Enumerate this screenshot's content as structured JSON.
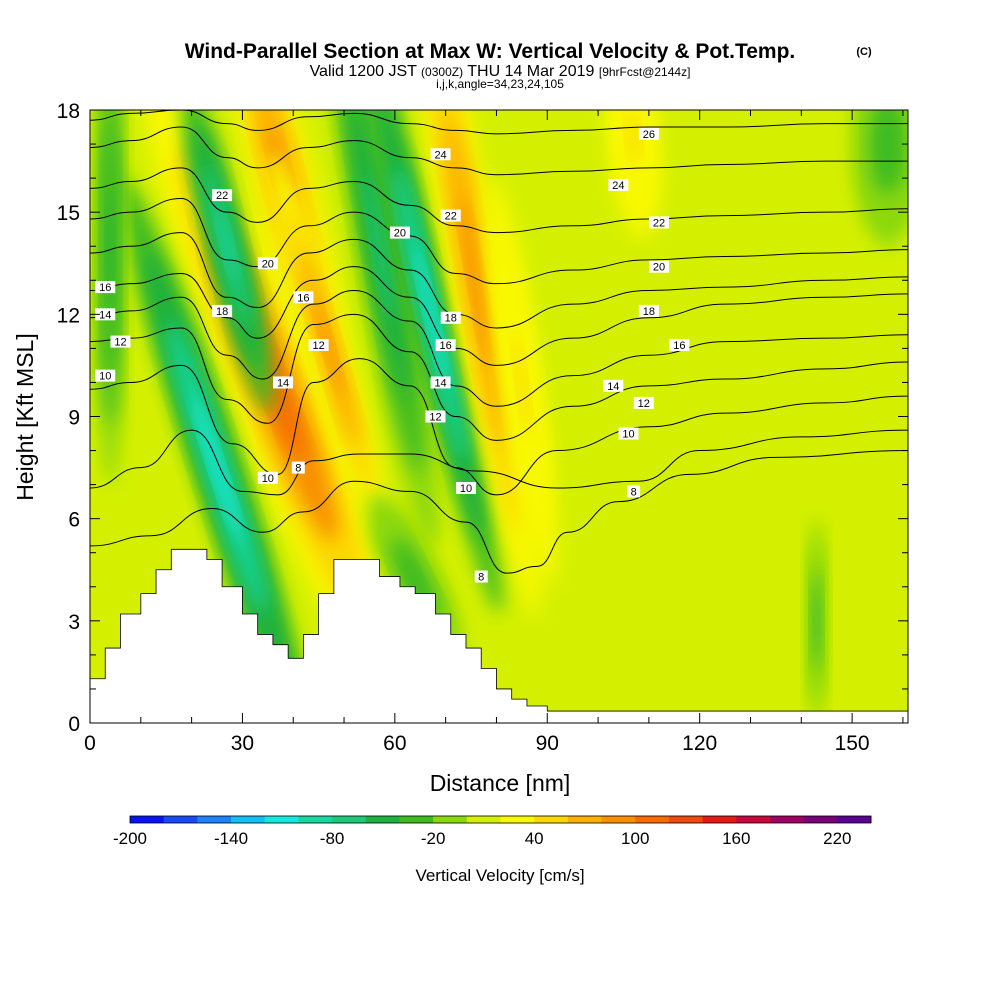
{
  "chart_data": {
    "type": "heatmap",
    "title": "Wind-Parallel Section at Max W: Vertical Velocity & Pot.Temp.",
    "title_mark": "(C)",
    "subtitle_line1_a": "Valid 1200 JST",
    "subtitle_line1_b": "(0300Z)",
    "subtitle_line1_c": "THU 14 Mar 2019",
    "subtitle_line1_d": "[9hrFcst@2144z]",
    "subtitle_line2": "i,j,k,angle=34,23,24,105",
    "xlabel": "Distance [nm]",
    "ylabel": "Height [Kft MSL]",
    "xlim": [
      0,
      161
    ],
    "ylim": [
      0,
      18
    ],
    "x_ticks": [
      0,
      30,
      60,
      90,
      120,
      150
    ],
    "y_ticks": [
      0,
      3,
      6,
      9,
      12,
      15,
      18
    ],
    "colorbar": {
      "label": "Vertical Velocity [cm/s]",
      "range": [
        -200,
        240
      ],
      "step": 20,
      "tick_labels": [
        "-200",
        "-140",
        "-80",
        "-20",
        "40",
        "100",
        "160",
        "220"
      ],
      "colors": [
        "#0a14f0",
        "#1a4af5",
        "#1f82f8",
        "#12c0f4",
        "#14e8dc",
        "#18d8a0",
        "#1ec878",
        "#1eb040",
        "#40bc20",
        "#8cd810",
        "#d4f000",
        "#f8f800",
        "#fcd800",
        "#fcb000",
        "#f89000",
        "#f46c00",
        "#ec4a10",
        "#e41a1a",
        "#c8083c",
        "#a00060",
        "#780078",
        "#5a0090"
      ]
    },
    "terrain_nm_kft": [
      [
        0,
        1.3
      ],
      [
        3,
        1.3
      ],
      [
        3,
        2.2
      ],
      [
        6,
        2.2
      ],
      [
        6,
        3.2
      ],
      [
        10,
        3.2
      ],
      [
        10,
        3.8
      ],
      [
        13,
        3.8
      ],
      [
        13,
        4.5
      ],
      [
        16,
        4.5
      ],
      [
        16,
        5.1
      ],
      [
        23,
        5.1
      ],
      [
        23,
        4.8
      ],
      [
        26,
        4.8
      ],
      [
        26,
        4.0
      ],
      [
        30,
        4.0
      ],
      [
        30,
        3.2
      ],
      [
        33,
        3.2
      ],
      [
        33,
        2.6
      ],
      [
        36,
        2.6
      ],
      [
        36,
        2.3
      ],
      [
        39,
        2.3
      ],
      [
        39,
        1.9
      ],
      [
        42,
        1.9
      ],
      [
        42,
        2.6
      ],
      [
        45,
        2.6
      ],
      [
        45,
        3.8
      ],
      [
        48,
        3.8
      ],
      [
        48,
        4.8
      ],
      [
        57,
        4.8
      ],
      [
        57,
        4.3
      ],
      [
        61,
        4.3
      ],
      [
        61,
        4.0
      ],
      [
        64,
        4.0
      ],
      [
        64,
        3.8
      ],
      [
        68,
        3.8
      ],
      [
        68,
        3.2
      ],
      [
        71,
        3.2
      ],
      [
        71,
        2.6
      ],
      [
        74,
        2.6
      ],
      [
        74,
        2.2
      ],
      [
        77,
        2.2
      ],
      [
        77,
        1.6
      ],
      [
        80,
        1.6
      ],
      [
        80,
        1.0
      ],
      [
        83,
        1.0
      ],
      [
        83,
        0.7
      ],
      [
        86,
        0.7
      ],
      [
        86,
        0.5
      ],
      [
        90,
        0.5
      ],
      [
        90,
        0.35
      ],
      [
        161,
        0.35
      ]
    ],
    "w_features": [
      {
        "x": 36,
        "y": 10,
        "angle": -21,
        "w": 9,
        "h": 10,
        "value": 110
      },
      {
        "x": 38,
        "y": 16,
        "angle": -14,
        "w": 6,
        "h": 6,
        "value": 90
      },
      {
        "x": 47,
        "y": 11,
        "angle": -16,
        "w": 4,
        "h": 6,
        "value": 80
      },
      {
        "x": 25,
        "y": 7.5,
        "angle": -18,
        "w": 5,
        "h": 9,
        "value": -120
      },
      {
        "x": 27,
        "y": 14,
        "angle": -14,
        "w": 4,
        "h": 5,
        "value": -90
      },
      {
        "x": 57,
        "y": 14,
        "angle": -10,
        "w": 5,
        "h": 9,
        "value": -80
      },
      {
        "x": 67,
        "y": 12,
        "angle": -13,
        "w": 4,
        "h": 9,
        "value": -110
      },
      {
        "x": 76,
        "y": 13,
        "angle": -10,
        "w": 5,
        "h": 10,
        "value": 90
      },
      {
        "x": 85,
        "y": 10,
        "angle": -8,
        "w": 4,
        "h": 6,
        "value": 40
      },
      {
        "x": 64,
        "y": 4.2,
        "angle": -26,
        "w": 5,
        "h": 2.8,
        "value": -40
      },
      {
        "x": 4,
        "y": 14,
        "angle": 0,
        "w": 3,
        "h": 7,
        "value": -50
      },
      {
        "x": 107,
        "y": 17.2,
        "angle": -5,
        "w": 5,
        "h": 3,
        "value": 50
      },
      {
        "x": 157,
        "y": 17,
        "angle": 0,
        "w": 7,
        "h": 3,
        "value": -30
      },
      {
        "x": 143,
        "y": 3,
        "angle": 0,
        "w": 2,
        "h": 3,
        "value": -40
      }
    ],
    "theta_contours": [
      {
        "level": "8",
        "x": [
          0,
          12,
          24,
          34,
          42,
          52,
          63,
          74,
          82,
          88,
          94,
          104,
          118,
          135,
          161
        ],
        "y": [
          5.2,
          5.5,
          6.3,
          5.6,
          6.2,
          7.1,
          6.8,
          5.9,
          4.4,
          4.6,
          5.6,
          6.5,
          7.3,
          7.8,
          8.0
        ]
      },
      {
        "label": "8",
        "x": [
          0,
          10,
          20,
          30,
          37,
          44,
          53,
          63,
          76,
          92,
          108,
          120,
          140,
          161
        ],
        "y": [
          6.9,
          7.5,
          8.6,
          6.8,
          6.7,
          7.7,
          7.9,
          7.9,
          7.4,
          6.9,
          7.1,
          8.0,
          8.4,
          8.6
        ]
      },
      {
        "label": "10",
        "x": [
          0,
          8,
          18,
          28,
          37,
          44,
          53,
          63,
          72,
          80,
          92,
          110,
          125,
          145,
          161
        ],
        "y": [
          9.8,
          10.0,
          10.5,
          8.2,
          7.3,
          10.0,
          10.7,
          9.9,
          7.5,
          6.7,
          8.0,
          8.7,
          9.1,
          9.4,
          9.6
        ]
      },
      {
        "label": "12",
        "x": [
          0,
          8,
          18,
          27,
          35,
          44,
          52,
          63,
          72,
          80,
          95,
          110,
          125,
          145,
          161
        ],
        "y": [
          11.2,
          11.3,
          11.6,
          9.5,
          8.8,
          11.7,
          12.0,
          10.9,
          9.0,
          8.3,
          9.3,
          9.9,
          10.1,
          10.4,
          10.6
        ]
      },
      {
        "label": "14",
        "x": [
          0,
          8,
          18,
          27,
          34,
          44,
          52,
          63,
          72,
          80,
          95,
          110,
          125,
          145,
          161
        ],
        "y": [
          11.9,
          12.1,
          12.5,
          10.8,
          10.1,
          12.3,
          12.7,
          11.8,
          9.9,
          9.3,
          10.2,
          10.8,
          11.2,
          11.3,
          11.4
        ]
      },
      {
        "label": "16",
        "x": [
          0,
          8,
          18,
          27,
          33,
          44,
          52,
          63,
          72,
          80,
          95,
          110,
          125,
          145,
          161
        ],
        "y": [
          12.7,
          12.9,
          13.2,
          11.9,
          11.3,
          13.0,
          13.4,
          12.5,
          11.0,
          10.5,
          11.3,
          11.9,
          12.3,
          12.5,
          12.6
        ]
      },
      {
        "label": "18",
        "x": [
          0,
          8,
          18,
          27,
          33,
          43,
          52,
          63,
          72,
          80,
          95,
          110,
          125,
          145,
          161
        ],
        "y": [
          13.8,
          14.0,
          14.4,
          12.5,
          12.2,
          13.8,
          14.2,
          13.3,
          12.0,
          11.6,
          12.3,
          12.7,
          12.8,
          13.0,
          13.1
        ]
      },
      {
        "label": "20",
        "x": [
          0,
          8,
          18,
          27,
          33,
          43,
          52,
          63,
          72,
          80,
          95,
          110,
          125,
          145,
          161
        ],
        "y": [
          14.8,
          15.0,
          15.4,
          13.6,
          13.4,
          14.6,
          15.0,
          14.3,
          13.2,
          12.9,
          13.3,
          13.6,
          13.7,
          13.8,
          13.9
        ]
      },
      {
        "label": "22",
        "x": [
          0,
          8,
          18,
          27,
          33,
          43,
          52,
          63,
          72,
          80,
          95,
          110,
          125,
          145,
          161
        ],
        "y": [
          15.7,
          15.9,
          16.3,
          15.0,
          14.7,
          15.7,
          15.9,
          15.2,
          14.6,
          14.4,
          14.6,
          14.8,
          14.9,
          15.0,
          15.1
        ]
      },
      {
        "label": "24",
        "x": [
          0,
          8,
          18,
          27,
          33,
          43,
          52,
          63,
          72,
          80,
          95,
          110,
          125,
          145,
          161
        ],
        "y": [
          16.9,
          17.1,
          17.5,
          16.6,
          16.3,
          16.9,
          17.1,
          16.6,
          16.3,
          16.1,
          16.2,
          16.3,
          16.4,
          16.5,
          16.5
        ]
      },
      {
        "label": "26",
        "x": [
          0,
          8,
          18,
          27,
          33,
          43,
          52,
          63,
          72,
          80,
          95,
          110,
          125,
          145,
          161
        ],
        "y": [
          17.7,
          17.9,
          18.0,
          17.6,
          17.4,
          17.8,
          17.9,
          17.6,
          17.4,
          17.3,
          17.4,
          17.5,
          17.5,
          17.6,
          17.6
        ]
      }
    ],
    "contour_labels": [
      {
        "text": "22",
        "x": 26,
        "y": 15.5
      },
      {
        "text": "20",
        "x": 35,
        "y": 13.5
      },
      {
        "text": "18",
        "x": 26,
        "y": 12.1
      },
      {
        "text": "16",
        "x": 3,
        "y": 12.8
      },
      {
        "text": "14",
        "x": 3,
        "y": 12.0
      },
      {
        "text": "12",
        "x": 6,
        "y": 11.2
      },
      {
        "text": "10",
        "x": 3,
        "y": 10.2
      },
      {
        "text": "16",
        "x": 42,
        "y": 12.5
      },
      {
        "text": "12",
        "x": 45,
        "y": 11.1
      },
      {
        "text": "14",
        "x": 38,
        "y": 10.0
      },
      {
        "text": "10",
        "x": 35,
        "y": 7.2
      },
      {
        "text": "8",
        "x": 41,
        "y": 7.5
      },
      {
        "text": "20",
        "x": 61,
        "y": 14.4
      },
      {
        "text": "22",
        "x": 71,
        "y": 14.9
      },
      {
        "text": "24",
        "x": 69,
        "y": 16.7
      },
      {
        "text": "18",
        "x": 71,
        "y": 11.9
      },
      {
        "text": "16",
        "x": 70,
        "y": 11.1
      },
      {
        "text": "14",
        "x": 69,
        "y": 10.0
      },
      {
        "text": "12",
        "x": 68,
        "y": 9.0
      },
      {
        "text": "10",
        "x": 74,
        "y": 6.9
      },
      {
        "text": "8",
        "x": 77,
        "y": 4.3
      },
      {
        "text": "26",
        "x": 110,
        "y": 17.3
      },
      {
        "text": "24",
        "x": 104,
        "y": 15.8
      },
      {
        "text": "22",
        "x": 112,
        "y": 14.7
      },
      {
        "text": "20",
        "x": 112,
        "y": 13.4
      },
      {
        "text": "18",
        "x": 110,
        "y": 12.1
      },
      {
        "text": "16",
        "x": 116,
        "y": 11.1
      },
      {
        "text": "14",
        "x": 103,
        "y": 9.9
      },
      {
        "text": "12",
        "x": 109,
        "y": 9.4
      },
      {
        "text": "10",
        "x": 106,
        "y": 8.5
      },
      {
        "text": "8",
        "x": 107,
        "y": 6.8
      }
    ]
  }
}
